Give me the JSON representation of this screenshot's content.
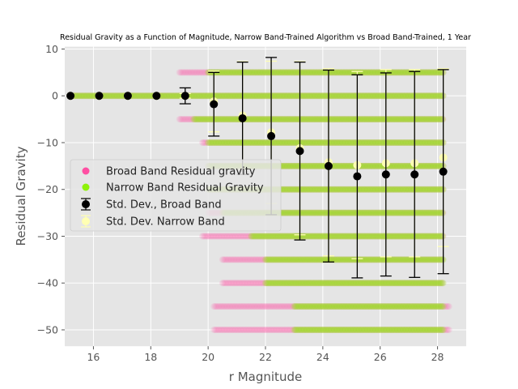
{
  "chart_data": {
    "type": "scatter",
    "title": "Residual Gravity as a Function of Magnitude, Narrow Band-Trained Algorithm vs Broad Band-Trained, 1 Year",
    "xlabel": "r Magnitude",
    "ylabel": "Residual Gravity",
    "xlim": [
      15.0,
      29.0
    ],
    "ylim": [
      -53.5,
      10.5
    ],
    "xticks": [
      16,
      18,
      20,
      22,
      24,
      26,
      28
    ],
    "yticks": [
      10,
      0,
      -10,
      -20,
      -30,
      -40,
      -50
    ],
    "grid": true,
    "legend_position": "center-left",
    "colors": {
      "broad_band": "#ff4fa3",
      "narrow_band": "#8ef20a",
      "std_broad": "#000000",
      "std_narrow": "#ffffb3"
    },
    "series": [
      {
        "name": "Broad Band Residual gravity",
        "kind": "scatter-bands"
      },
      {
        "name": "Narrow Band Residual Gravity",
        "kind": "scatter-bands"
      },
      {
        "name": "Std. Dev., Broad Band",
        "kind": "errorbar",
        "x": [
          15.2,
          16.2,
          17.2,
          18.2,
          19.2,
          20.2,
          21.2,
          22.2,
          23.2,
          24.2,
          25.2,
          26.2,
          27.2,
          28.2
        ],
        "y": [
          0,
          0,
          0,
          0,
          0,
          -1.8,
          -4.8,
          -8.6,
          -11.8,
          -15.0,
          -17.2,
          -16.8,
          -16.8,
          -16.2
        ],
        "yerr": [
          0,
          0,
          0,
          0,
          1.7,
          6.8,
          12.0,
          16.8,
          19.0,
          20.5,
          21.7,
          21.7,
          22.0,
          21.8
        ]
      },
      {
        "name": "Std. Dev. Narrow Band",
        "kind": "errorbar",
        "x": [
          15.2,
          16.2,
          17.2,
          18.2,
          19.2,
          20.2,
          21.2,
          22.2,
          23.2,
          24.2,
          25.2,
          26.2,
          27.2,
          28.2
        ],
        "y": [
          0,
          0,
          0,
          0,
          0,
          -1.2,
          -4.2,
          -7.8,
          -11.2,
          -14.2,
          -14.8,
          -14.4,
          -14.4,
          -13.2
        ],
        "yerr": [
          0,
          0,
          0,
          0,
          0.5,
          6.5,
          11.5,
          15.2,
          18.5,
          20.0,
          20.0,
          20.0,
          20.0,
          19.0
        ]
      }
    ],
    "narrow_band_rows": [
      {
        "y": 5,
        "x": [
          20.0,
          28.2
        ]
      },
      {
        "y": 0,
        "x": [
          15.2,
          28.2
        ]
      },
      {
        "y": -5,
        "x": [
          19.5,
          28.2
        ]
      },
      {
        "y": -10,
        "x": [
          20.0,
          28.2
        ]
      },
      {
        "y": -15,
        "x": [
          20.0,
          28.2
        ]
      },
      {
        "y": -20,
        "x": [
          20.0,
          28.2
        ]
      },
      {
        "y": -25,
        "x": [
          20.5,
          28.2
        ]
      },
      {
        "y": -30,
        "x": [
          21.5,
          28.2
        ]
      },
      {
        "y": -35,
        "x": [
          22.0,
          28.2
        ]
      },
      {
        "y": -40,
        "x": [
          22.0,
          28.2
        ]
      },
      {
        "y": -45,
        "x": [
          23.0,
          28.2
        ]
      },
      {
        "y": -50,
        "x": [
          23.0,
          28.2
        ]
      }
    ],
    "broad_band_rows": [
      {
        "y": 5,
        "x": [
          19.0,
          28.2
        ]
      },
      {
        "y": 0,
        "x": [
          15.2,
          28.2
        ]
      },
      {
        "y": -5,
        "x": [
          19.0,
          28.2
        ]
      },
      {
        "y": -10,
        "x": [
          19.8,
          28.2
        ]
      },
      {
        "y": -15,
        "x": [
          20.0,
          28.2
        ]
      },
      {
        "y": -20,
        "x": [
          20.0,
          28.2
        ]
      },
      {
        "y": -25,
        "x": [
          20.0,
          28.2
        ]
      },
      {
        "y": -30,
        "x": [
          19.8,
          28.2
        ]
      },
      {
        "y": -35,
        "x": [
          20.5,
          28.2
        ]
      },
      {
        "y": -40,
        "x": [
          20.5,
          28.2
        ]
      },
      {
        "y": -45,
        "x": [
          20.2,
          28.4
        ]
      },
      {
        "y": -50,
        "x": [
          20.2,
          28.4
        ]
      }
    ]
  }
}
